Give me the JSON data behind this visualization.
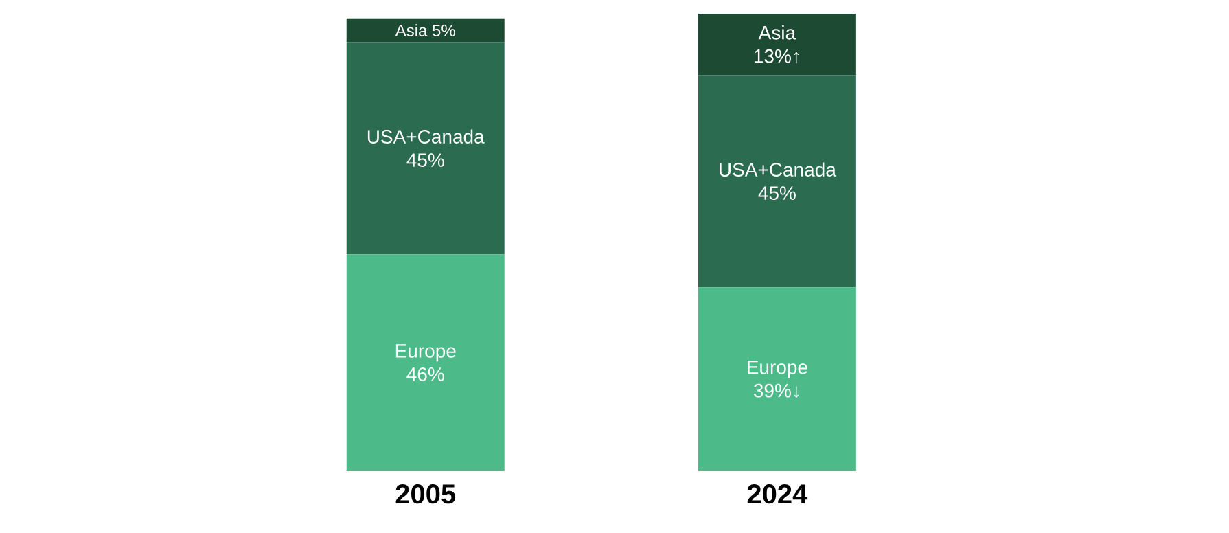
{
  "chart_data": {
    "type": "bar",
    "stacked": true,
    "categories": [
      "2005",
      "2024"
    ],
    "series": [
      {
        "name": "Europe",
        "color": "#4dba8a",
        "values": [
          46,
          39
        ],
        "value_labels": [
          "46%",
          "39%↓"
        ]
      },
      {
        "name": "USA+Canada",
        "color": "#2b6b50",
        "values": [
          45,
          45
        ],
        "value_labels": [
          "45%",
          "45%"
        ]
      },
      {
        "name": "Asia",
        "color": "#1c4a33",
        "values": [
          5,
          13
        ],
        "value_labels": [
          "5%",
          "13%↑"
        ]
      }
    ]
  }
}
